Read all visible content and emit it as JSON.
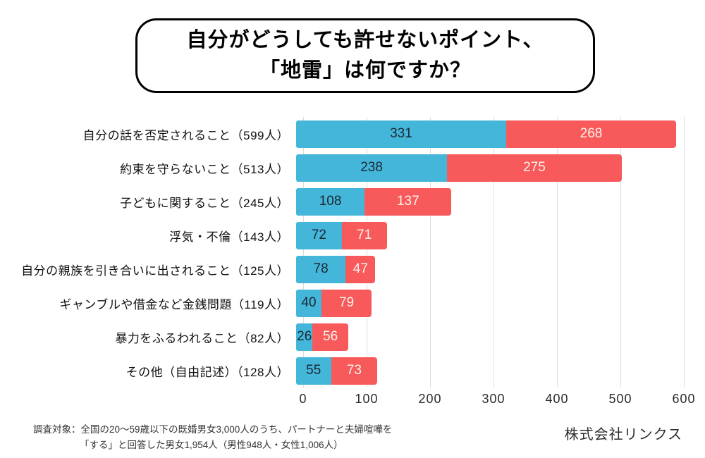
{
  "title": {
    "line1": "自分がどうしても許せないポイント、",
    "line2": "「地雷」は何ですか？"
  },
  "colors": {
    "blue": "#44B6D9",
    "red": "#F85A5C",
    "grid": "#DDDDDD",
    "value_label_on_blue": "#1C2733",
    "value_label_on_red": "#FAF3EA",
    "title_border": "#000000"
  },
  "chart_data": {
    "type": "bar",
    "orientation": "horizontal",
    "stacked": true,
    "title": "自分がどうしても許せないポイント、「地雷」は何ですか？",
    "categories": [
      "自分の話を否定されること（599人）",
      "約束を守らないこと（513人）",
      "子どもに関すること（245人）",
      "浮気・不倫（143人）",
      "自分の親族を引き合いに出されること（125人）",
      "ギャンブルや借金など金銭問題（119人）",
      "暴力をふるわれること（82人）",
      "その他（自由記述）（128人）"
    ],
    "series": [
      {
        "name": "segment-blue",
        "color": "#44B6D9",
        "text_color": "#1C2733",
        "values": [
          331,
          238,
          108,
          72,
          78,
          40,
          26,
          55
        ]
      },
      {
        "name": "segment-red",
        "color": "#F85A5C",
        "text_color": "#FAF3EA",
        "values": [
          268,
          275,
          137,
          71,
          47,
          79,
          56,
          73
        ]
      }
    ],
    "totals": [
      599,
      513,
      245,
      143,
      125,
      119,
      82,
      128
    ],
    "x_ticks": [
      0,
      100,
      200,
      300,
      400,
      500,
      600
    ],
    "xlim": [
      0,
      600
    ],
    "xlabel": "",
    "ylabel": "",
    "grid": true,
    "legend": false
  },
  "footer": {
    "note_line1": "調査対象：全国の20〜59歳以下の既婚男女3,000人のうち、パートナーと夫婦喧嘩を",
    "note_line2": "「する」と回答した男女1,954人（男性948人・女性1,006人）",
    "company": "株式会社リンクス"
  }
}
